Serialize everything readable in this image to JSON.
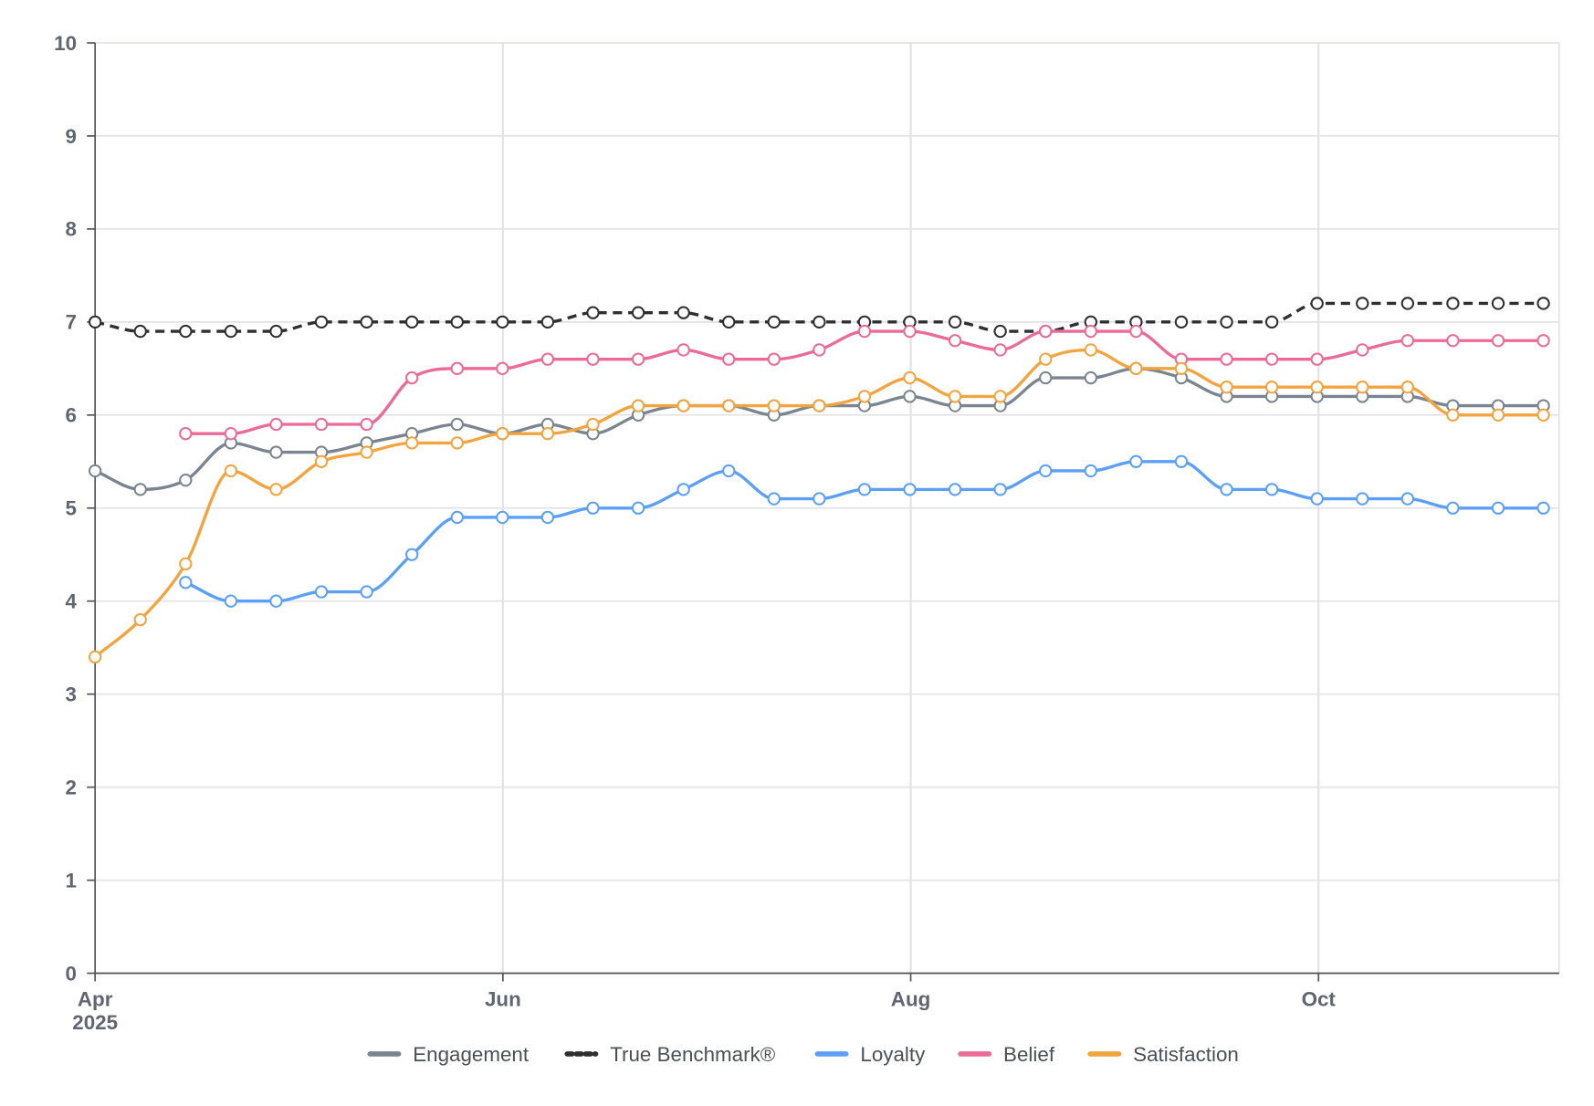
{
  "chart_data": {
    "type": "line",
    "title": "",
    "xlabel": "",
    "ylabel": "",
    "ylim": [
      0,
      10
    ],
    "yticks": [
      "0",
      "1",
      "2",
      "3",
      "4",
      "5",
      "6",
      "7",
      "8",
      "9",
      "10"
    ],
    "xlim_days": [
      0,
      206
    ],
    "x_start": "2025-04-01",
    "x_step_days": 6.77,
    "xticks": [
      {
        "label": "Apr",
        "sublabel": "2025",
        "day": 0
      },
      {
        "label": "Jun",
        "sublabel": "",
        "day": 61
      },
      {
        "label": "Aug",
        "sublabel": "",
        "day": 122
      },
      {
        "label": "Oct",
        "sublabel": "",
        "day": 183
      }
    ],
    "grid": true,
    "legend_position": "bottom",
    "series": [
      {
        "name": "Engagement",
        "color": "#7b8590",
        "dashed": false,
        "values": [
          5.4,
          5.2,
          5.3,
          5.7,
          5.6,
          5.6,
          5.7,
          5.8,
          5.9,
          5.8,
          5.9,
          5.8,
          6.0,
          6.1,
          6.1,
          6.0,
          6.1,
          6.1,
          6.2,
          6.1,
          6.1,
          6.4,
          6.4,
          6.5,
          6.4,
          6.2,
          6.2,
          6.2,
          6.2,
          6.2,
          6.1,
          6.1,
          6.1
        ]
      },
      {
        "name": "True Benchmark®",
        "color": "#2f2f2f",
        "dashed": true,
        "values": [
          7.0,
          6.9,
          6.9,
          6.9,
          6.9,
          7.0,
          7.0,
          7.0,
          7.0,
          7.0,
          7.0,
          7.1,
          7.1,
          7.1,
          7.0,
          7.0,
          7.0,
          7.0,
          7.0,
          7.0,
          6.9,
          6.9,
          7.0,
          7.0,
          7.0,
          7.0,
          7.0,
          7.2,
          7.2,
          7.2,
          7.2,
          7.2,
          7.2
        ]
      },
      {
        "name": "Loyalty",
        "color": "#5ba0f5",
        "dashed": false,
        "values": [
          null,
          null,
          4.2,
          4.0,
          4.0,
          4.1,
          4.1,
          4.5,
          4.9,
          4.9,
          4.9,
          5.0,
          5.0,
          5.2,
          5.4,
          5.1,
          5.1,
          5.2,
          5.2,
          5.2,
          5.2,
          5.4,
          5.4,
          5.5,
          5.5,
          5.2,
          5.2,
          5.1,
          5.1,
          5.1,
          5.0,
          5.0,
          5.0
        ]
      },
      {
        "name": "Belief",
        "color": "#ec6a98",
        "dashed": false,
        "values": [
          null,
          null,
          5.8,
          5.8,
          5.9,
          5.9,
          5.9,
          6.4,
          6.5,
          6.5,
          6.6,
          6.6,
          6.6,
          6.7,
          6.6,
          6.6,
          6.7,
          6.9,
          6.9,
          6.8,
          6.7,
          6.9,
          6.9,
          6.9,
          6.6,
          6.6,
          6.6,
          6.6,
          6.7,
          6.8,
          6.8,
          6.8,
          6.8
        ]
      },
      {
        "name": "Satisfaction",
        "color": "#f2a43f",
        "dashed": false,
        "values": [
          3.4,
          3.8,
          4.4,
          5.4,
          5.2,
          5.5,
          5.6,
          5.7,
          5.7,
          5.8,
          5.8,
          5.9,
          6.1,
          6.1,
          6.1,
          6.1,
          6.1,
          6.2,
          6.4,
          6.2,
          6.2,
          6.6,
          6.7,
          6.5,
          6.5,
          6.3,
          6.3,
          6.3,
          6.3,
          6.3,
          6.0,
          6.0,
          6.0
        ]
      }
    ]
  }
}
